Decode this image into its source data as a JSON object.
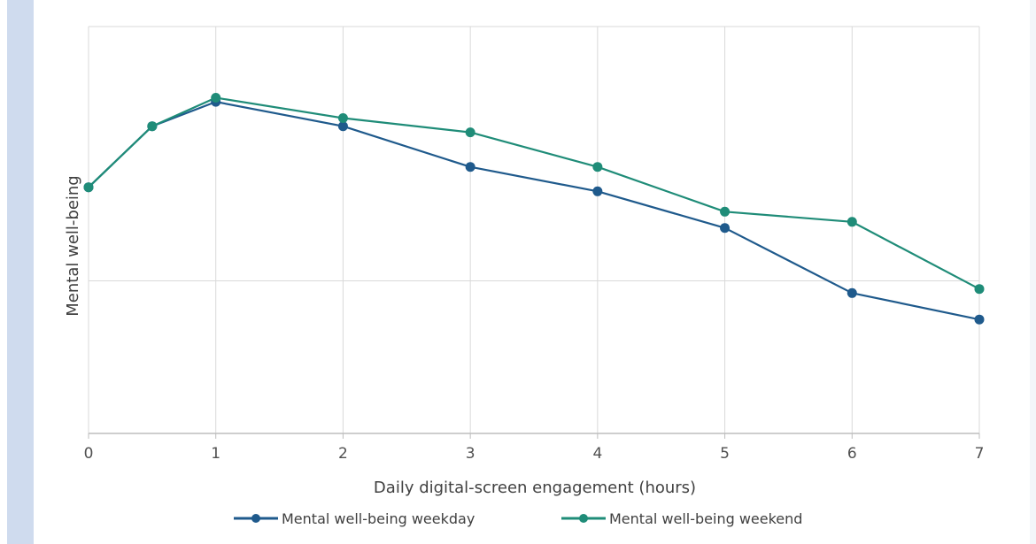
{
  "chart_data": {
    "type": "line",
    "title": "",
    "xlabel": "Daily digital-screen engagement (hours)",
    "ylabel": "Mental well-being",
    "x_ticks": [
      0,
      1,
      2,
      3,
      4,
      5,
      6,
      7
    ],
    "xlim": [
      0,
      7
    ],
    "ylim": [
      0,
      100
    ],
    "y_gridlines": [
      0,
      37.5,
      100
    ],
    "grid": true,
    "legend_position": "bottom-center",
    "series": [
      {
        "name": "Mental well-being weekday",
        "color": "#1f5a8c",
        "x": [
          0,
          0.5,
          1,
          2,
          3,
          4,
          5,
          6,
          7
        ],
        "y": [
          60.5,
          75.5,
          81.5,
          75.5,
          65.5,
          59.5,
          50.5,
          34.5,
          28
        ]
      },
      {
        "name": "Mental well-being weekend",
        "color": "#1f8c78",
        "x": [
          0,
          0.5,
          1,
          2,
          3,
          4,
          5,
          6,
          7
        ],
        "y": [
          60.5,
          75.5,
          82.5,
          77.5,
          74,
          65.5,
          54.5,
          52,
          35.5
        ]
      }
    ]
  }
}
